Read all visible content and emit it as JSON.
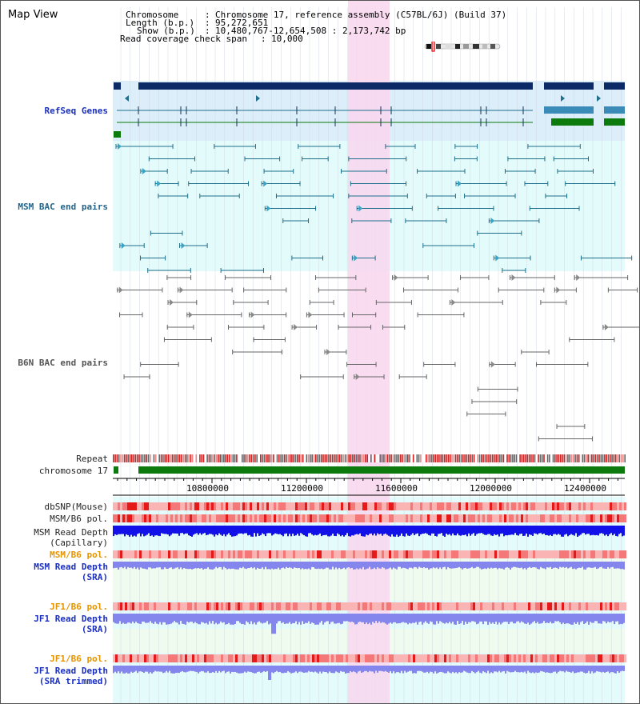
{
  "header": {
    "title": "Map View",
    "chromosome_label": "Chromosome",
    "chromosome_value": "Chromosome 17, reference assembly (C57BL/6J) (Build 37)",
    "length_label": "Length (b.p.)",
    "length_value": "95,272,651",
    "show_label": "Show (b.p.)",
    "show_value": "10,480,767-12,654,508 : 2,173,742 bp",
    "coverage_label": "Read coverage check span",
    "coverage_value": "10,000"
  },
  "tracks": {
    "refseq": "RefSeq Genes",
    "msm_bac": "MSM BAC end pairs",
    "b6n_bac": "B6N BAC end pairs",
    "repeat": "Repeat",
    "chromosome": "chromosome 17",
    "dbsnp": "dbSNP(Mouse)",
    "msm_b6_pol_1": "MSM/B6 pol.",
    "msm_depth_cap_1": "MSM Read Depth",
    "msm_depth_cap_2": "(Capillary)",
    "msm_b6_pol_2": "MSM/B6 pol.",
    "msm_depth_sra_1": "MSM Read Depth",
    "msm_depth_sra_2": "(SRA)",
    "jf1_b6_pol_1": "JF1/B6 pol.",
    "jf1_depth_sra_1": "JF1 Read Depth",
    "jf1_depth_sra_2": "(SRA)",
    "jf1_b6_pol_2": "JF1/B6 pol.",
    "jf1_depth_trim_1": "JF1 Read Depth",
    "jf1_depth_trim_2": "(SRA trimmed)"
  },
  "axis": {
    "ticks": [
      "10800000",
      "11200000",
      "11600000",
      "12000000",
      "12400000"
    ]
  },
  "colors": {
    "highlight": "#f9d6ee",
    "panel_blue": "#dbeefa",
    "panel_cyan": "#e4fbfb",
    "panel_green": "#effbef",
    "refseq_dark": "#0b2a66",
    "refseq_mid": "#3a8bb8",
    "gene_green": "#0c7a0c",
    "msm_teal": "#1f6f8b",
    "b6n_gray": "#555555",
    "depth_blue": "#1212e8",
    "depth_light": "#8585ee",
    "pol_red": "#f45c5c"
  }
}
